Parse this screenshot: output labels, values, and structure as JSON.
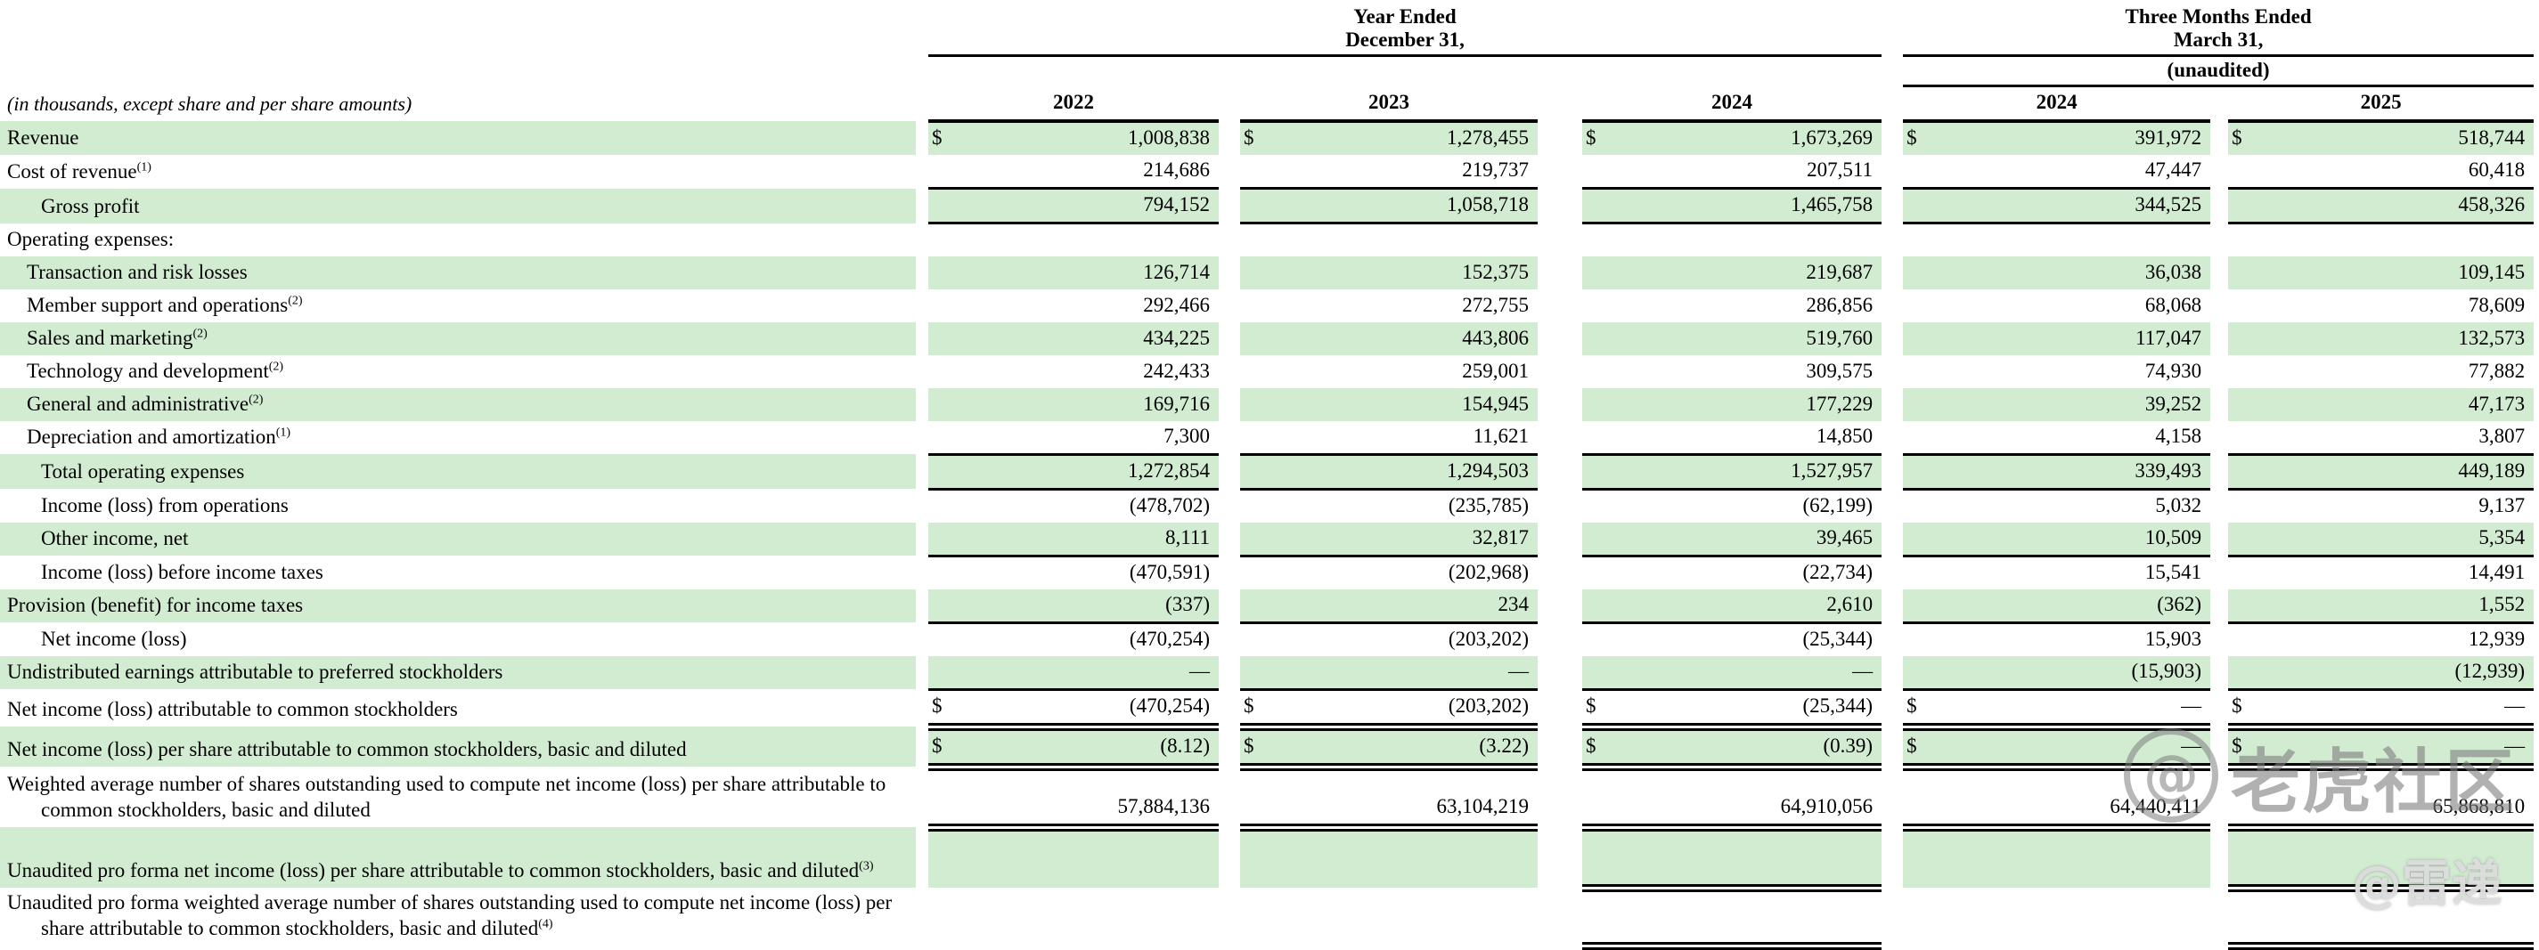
{
  "note": "(in thousands, except share and per share amounts)",
  "header": {
    "annual_group": {
      "line1": "Year Ended",
      "line2": "December 31,"
    },
    "interim_group": {
      "line1": "Three Months Ended",
      "line2": "March 31,"
    },
    "unaudited": "(unaudited)",
    "years": [
      "2022",
      "2023",
      "2024",
      "2024",
      "2025"
    ]
  },
  "colors": {
    "row_shade_green": "#d2ecd2",
    "rule_black": "#000000"
  },
  "watermarks": {
    "logo_glyph": "@",
    "community": "老虎社区",
    "author": "@雷递"
  },
  "rows": [
    {
      "label": "Revenue",
      "sup": "",
      "ind": 0,
      "sh": true,
      "d": [
        "$",
        "$",
        "$",
        "$",
        "$"
      ],
      "v": [
        "1,008,838",
        "1,278,455",
        "1,673,269",
        "391,972",
        "518,744"
      ],
      "bb": "none",
      "bc": []
    },
    {
      "label": "Cost of revenue",
      "sup": "(1)",
      "ind": 0,
      "sh": false,
      "d": [
        "",
        "",
        "",
        "",
        ""
      ],
      "v": [
        "214,686",
        "219,737",
        "207,511",
        "47,447",
        "60,418"
      ],
      "bb": "single",
      "bc": [
        0,
        1,
        2,
        3,
        4
      ]
    },
    {
      "label": "Gross profit",
      "sup": "",
      "ind": 2,
      "sh": true,
      "d": [
        "",
        "",
        "",
        "",
        ""
      ],
      "v": [
        "794,152",
        "1,058,718",
        "1,465,758",
        "344,525",
        "458,326"
      ],
      "bb": "single",
      "bc": [
        0,
        1,
        2,
        3,
        4
      ]
    },
    {
      "label": "Operating expenses:",
      "sup": "",
      "ind": 0,
      "sh": false,
      "d": [
        "",
        "",
        "",
        "",
        ""
      ],
      "v": [
        "",
        "",
        "",
        "",
        ""
      ],
      "bb": "none",
      "bc": []
    },
    {
      "label": "Transaction and risk losses",
      "sup": "",
      "ind": 1,
      "sh": true,
      "d": [
        "",
        "",
        "",
        "",
        ""
      ],
      "v": [
        "126,714",
        "152,375",
        "219,687",
        "36,038",
        "109,145"
      ],
      "bb": "none",
      "bc": []
    },
    {
      "label": "Member support and operations",
      "sup": "(2)",
      "ind": 1,
      "sh": false,
      "d": [
        "",
        "",
        "",
        "",
        ""
      ],
      "v": [
        "292,466",
        "272,755",
        "286,856",
        "68,068",
        "78,609"
      ],
      "bb": "none",
      "bc": []
    },
    {
      "label": "Sales and marketing",
      "sup": "(2)",
      "ind": 1,
      "sh": true,
      "d": [
        "",
        "",
        "",
        "",
        ""
      ],
      "v": [
        "434,225",
        "443,806",
        "519,760",
        "117,047",
        "132,573"
      ],
      "bb": "none",
      "bc": []
    },
    {
      "label": "Technology and development",
      "sup": "(2)",
      "ind": 1,
      "sh": false,
      "d": [
        "",
        "",
        "",
        "",
        ""
      ],
      "v": [
        "242,433",
        "259,001",
        "309,575",
        "74,930",
        "77,882"
      ],
      "bb": "none",
      "bc": []
    },
    {
      "label": "General and administrative",
      "sup": "(2)",
      "ind": 1,
      "sh": true,
      "d": [
        "",
        "",
        "",
        "",
        ""
      ],
      "v": [
        "169,716",
        "154,945",
        "177,229",
        "39,252",
        "47,173"
      ],
      "bb": "none",
      "bc": []
    },
    {
      "label": "Depreciation and amortization",
      "sup": "(1)",
      "ind": 1,
      "sh": false,
      "d": [
        "",
        "",
        "",
        "",
        ""
      ],
      "v": [
        "7,300",
        "11,621",
        "14,850",
        "4,158",
        "3,807"
      ],
      "bb": "single",
      "bc": [
        0,
        1,
        2,
        3,
        4
      ]
    },
    {
      "label": "Total operating expenses",
      "sup": "",
      "ind": 2,
      "sh": true,
      "d": [
        "",
        "",
        "",
        "",
        ""
      ],
      "v": [
        "1,272,854",
        "1,294,503",
        "1,527,957",
        "339,493",
        "449,189"
      ],
      "bb": "single",
      "bc": [
        0,
        1,
        2,
        3,
        4
      ]
    },
    {
      "label": "Income (loss) from operations",
      "sup": "",
      "ind": 2,
      "sh": false,
      "d": [
        "",
        "",
        "",
        "",
        ""
      ],
      "v": [
        "(478,702)",
        "(235,785)",
        "(62,199)",
        "5,032",
        "9,137"
      ],
      "bb": "none",
      "bc": []
    },
    {
      "label": "Other income, net",
      "sup": "",
      "ind": 2,
      "sh": true,
      "d": [
        "",
        "",
        "",
        "",
        ""
      ],
      "v": [
        "8,111",
        "32,817",
        "39,465",
        "10,509",
        "5,354"
      ],
      "bb": "single",
      "bc": [
        0,
        1,
        2,
        3,
        4
      ]
    },
    {
      "label": "Income (loss) before income taxes",
      "sup": "",
      "ind": 2,
      "sh": false,
      "d": [
        "",
        "",
        "",
        "",
        ""
      ],
      "v": [
        "(470,591)",
        "(202,968)",
        "(22,734)",
        "15,541",
        "14,491"
      ],
      "bb": "none",
      "bc": []
    },
    {
      "label": "Provision (benefit) for income taxes",
      "sup": "",
      "ind": 0,
      "sh": true,
      "d": [
        "",
        "",
        "",
        "",
        ""
      ],
      "v": [
        "(337)",
        "234",
        "2,610",
        "(362)",
        "1,552"
      ],
      "bb": "single",
      "bc": [
        0,
        1,
        2,
        3,
        4
      ]
    },
    {
      "label": "Net income (loss)",
      "sup": "",
      "ind": 2,
      "sh": false,
      "d": [
        "",
        "",
        "",
        "",
        ""
      ],
      "v": [
        "(470,254)",
        "(203,202)",
        "(25,344)",
        "15,903",
        "12,939"
      ],
      "bb": "none",
      "bc": []
    },
    {
      "label": "Undistributed earnings attributable to preferred stockholders",
      "sup": "",
      "ind": 0,
      "sh": true,
      "d": [
        "",
        "",
        "",
        "",
        ""
      ],
      "v": [
        "—",
        "—",
        "—",
        "(15,903)",
        "(12,939)"
      ],
      "bb": "single",
      "bc": [
        0,
        1,
        2,
        3,
        4
      ]
    },
    {
      "label": "Net income (loss) attributable to common stockholders",
      "sup": "",
      "ind": 0,
      "sh": false,
      "d": [
        "$",
        "$",
        "$",
        "$",
        "$"
      ],
      "v": [
        "(470,254)",
        "(203,202)",
        "(25,344)",
        "—",
        "—"
      ],
      "bb": "double",
      "bc": [
        0,
        1,
        2,
        3,
        4
      ]
    },
    {
      "label": "Net income (loss) per share attributable to common stockholders, basic and diluted",
      "sup": "",
      "ind": 0,
      "sh": true,
      "d": [
        "$",
        "$",
        "$",
        "$",
        "$"
      ],
      "v": [
        "(8.12)",
        "(3.22)",
        "(0.39)",
        "—",
        "—"
      ],
      "bb": "double",
      "bc": [
        0,
        1,
        2,
        3,
        4
      ]
    },
    {
      "label": "Weighted average number of shares outstanding used to compute net income (loss) per share attributable to common stockholders, basic and diluted",
      "sup": "",
      "ind": 0,
      "sh": false,
      "d": [
        "",
        "",
        "",
        "",
        ""
      ],
      "v": [
        "57,884,136",
        "63,104,219",
        "64,910,056",
        "64,440,411",
        "65,868,810"
      ],
      "bb": "double",
      "bc": [
        0,
        1,
        2,
        3,
        4
      ]
    },
    {
      "label": "Unaudited pro forma net income (loss) per share attributable to common stockholders, basic and diluted",
      "sup": "(3)",
      "ind": 0,
      "sh": true,
      "d": [
        "",
        "",
        "",
        "",
        ""
      ],
      "v": [
        "",
        "",
        "",
        "",
        ""
      ],
      "bb": "double",
      "bc": [
        2,
        4
      ]
    },
    {
      "label": "Unaudited pro forma weighted average number of shares outstanding used to compute net income (loss) per share attributable to common stockholders, basic and diluted",
      "sup": "(4)",
      "ind": 0,
      "sh": false,
      "d": [
        "",
        "",
        "",
        "",
        ""
      ],
      "v": [
        "",
        "",
        "",
        "",
        ""
      ],
      "bb": "double",
      "bc": [
        2,
        4
      ]
    }
  ]
}
